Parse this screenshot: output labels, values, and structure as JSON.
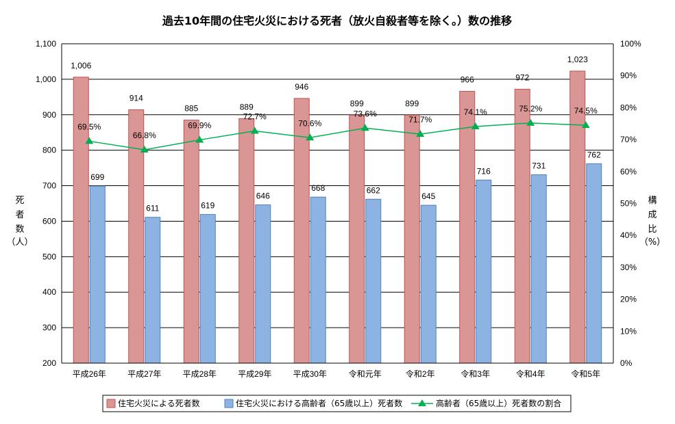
{
  "chart_data": {
    "type": "bar",
    "title": "過去10年間の住宅火災における死者（放火自殺者等を除く。）数の推移",
    "categories": [
      "平成26年",
      "平成27年",
      "平成28年",
      "平成29年",
      "平成30年",
      "令和元年",
      "令和2年",
      "令和3年",
      "令和4年",
      "令和5年"
    ],
    "series": [
      {
        "name": "住宅火災による死者数",
        "type": "bar",
        "axis": "left",
        "color": "#d99694",
        "values": [
          1006,
          914,
          885,
          889,
          946,
          899,
          899,
          966,
          972,
          1023
        ],
        "labels": [
          "1,006",
          "914",
          "885",
          "889",
          "946",
          "899",
          "899",
          "966",
          "972",
          "1,023"
        ]
      },
      {
        "name": "住宅火災における高齢者（65歳以上）死者数",
        "type": "bar",
        "axis": "left",
        "color": "#8db3e2",
        "values": [
          699,
          611,
          619,
          646,
          668,
          662,
          645,
          716,
          731,
          762
        ],
        "labels": [
          "699",
          "611",
          "619",
          "646",
          "668",
          "662",
          "645",
          "716",
          "731",
          "762"
        ]
      },
      {
        "name": "高齢者（65歳以上）死者数の割合",
        "type": "line",
        "axis": "right",
        "color": "#00b050",
        "values": [
          69.5,
          66.8,
          69.9,
          72.7,
          70.6,
          73.6,
          71.7,
          74.1,
          75.2,
          74.5
        ],
        "labels": [
          "69.5%",
          "66.8%",
          "69.9%",
          "72.7%",
          "70.6%",
          "73.6%",
          "71.7%",
          "74.1%",
          "75.2%",
          "74.5%"
        ]
      }
    ],
    "ylim": [
      200,
      1100
    ],
    "yticks": [
      "1,100",
      "1,000",
      "900",
      "800",
      "700",
      "600",
      "500",
      "400",
      "300",
      "200"
    ],
    "y2lim": [
      0,
      100
    ],
    "y2ticks": [
      "100%",
      "90%",
      "80%",
      "70%",
      "60%",
      "50%",
      "40%",
      "30%",
      "20%",
      "10%",
      "0%"
    ],
    "ylabel": [
      "死",
      "者",
      "数",
      "（人）"
    ],
    "y2label": [
      "構",
      "成",
      "比",
      "（%）"
    ],
    "grid": true,
    "legend_position": "bottom"
  }
}
